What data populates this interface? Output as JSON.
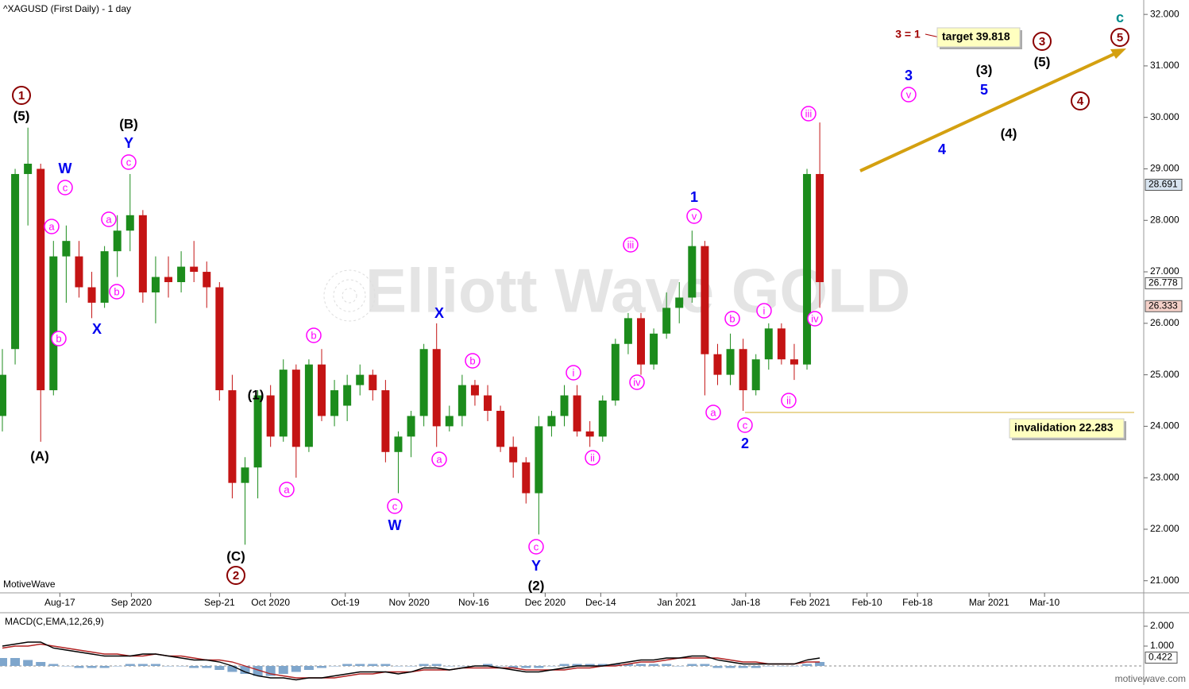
{
  "chart_data": {
    "type": "candlestick",
    "title": "^XAGUSD (First Daily) - 1 day",
    "brand": "MotiveWave",
    "watermark": "Elliott Wave GOLD",
    "footer": "motivewave.com",
    "x": [
      0,
      2,
      4,
      6,
      8,
      10,
      12,
      14,
      16,
      18,
      20,
      22,
      24,
      26,
      28,
      30,
      32,
      34,
      36,
      38,
      40,
      42,
      44,
      46,
      48,
      50,
      52,
      54,
      56,
      58,
      60,
      62,
      64,
      66,
      68,
      70,
      72,
      74,
      76,
      78,
      80,
      82,
      84,
      86,
      88,
      90,
      92,
      94,
      96,
      98,
      100,
      102,
      104,
      106,
      108,
      110,
      112,
      114,
      116,
      118,
      120,
      122,
      124,
      126,
      128
    ],
    "open": [
      24.2,
      25.5,
      28.9,
      29.0,
      24.7,
      27.3,
      27.3,
      26.7,
      26.4,
      27.4,
      27.8,
      28.1,
      26.6,
      26.9,
      26.8,
      27.1,
      27.0,
      26.7,
      24.7,
      22.9,
      23.2,
      24.6,
      23.8,
      25.1,
      23.6,
      25.2,
      24.2,
      24.4,
      24.8,
      25.0,
      24.7,
      23.5,
      23.8,
      24.2,
      25.5,
      24.0,
      24.2,
      24.8,
      24.6,
      24.3,
      23.6,
      23.3,
      22.7,
      24.0,
      24.2,
      24.6,
      23.9,
      23.8,
      24.5,
      25.6,
      26.1,
      25.2,
      25.8,
      26.3,
      26.5,
      27.5,
      25.4,
      25.0,
      25.5,
      24.7,
      25.3,
      25.9,
      25.3,
      25.2,
      28.9
    ],
    "high": [
      25.5,
      29.0,
      29.8,
      29.1,
      27.6,
      27.9,
      27.6,
      27.0,
      27.5,
      28.1,
      28.9,
      28.2,
      27.3,
      27.3,
      27.4,
      27.6,
      27.2,
      26.8,
      25.0,
      23.4,
      24.7,
      24.8,
      25.3,
      25.2,
      25.3,
      25.5,
      24.9,
      25.0,
      25.2,
      25.1,
      24.9,
      23.9,
      24.3,
      25.6,
      26.0,
      24.4,
      25.0,
      24.9,
      24.8,
      24.4,
      23.8,
      23.4,
      24.2,
      24.3,
      24.8,
      24.8,
      24.1,
      24.6,
      25.7,
      26.2,
      26.2,
      25.9,
      26.6,
      26.8,
      27.8,
      27.6,
      25.6,
      25.8,
      25.7,
      25.4,
      26.0,
      26.0,
      25.6,
      29.0,
      29.9
    ],
    "low": [
      23.9,
      25.2,
      27.9,
      23.7,
      24.6,
      26.4,
      26.5,
      26.1,
      26.3,
      26.9,
      27.4,
      26.4,
      26.0,
      26.5,
      26.6,
      26.8,
      26.3,
      24.5,
      22.6,
      21.7,
      22.6,
      23.6,
      23.7,
      23.0,
      23.5,
      24.1,
      24.0,
      24.1,
      24.6,
      24.5,
      23.3,
      22.7,
      23.4,
      24.0,
      23.6,
      23.9,
      24.0,
      24.4,
      24.1,
      23.5,
      23.0,
      22.5,
      21.9,
      23.8,
      24.0,
      23.8,
      23.6,
      23.7,
      24.4,
      25.4,
      25.0,
      25.1,
      25.7,
      26.0,
      26.4,
      24.6,
      24.8,
      24.8,
      24.3,
      24.6,
      25.1,
      25.2,
      24.9,
      25.1,
      26.3
    ],
    "close": [
      25.0,
      28.9,
      29.1,
      24.7,
      27.3,
      27.6,
      26.7,
      26.4,
      27.4,
      27.8,
      28.1,
      26.6,
      26.9,
      26.8,
      27.1,
      27.0,
      26.7,
      24.7,
      22.9,
      23.2,
      24.6,
      23.8,
      25.1,
      23.6,
      25.2,
      24.2,
      24.7,
      24.8,
      25.0,
      24.7,
      23.5,
      23.8,
      24.2,
      25.5,
      24.0,
      24.2,
      24.8,
      24.6,
      24.3,
      23.6,
      23.3,
      22.7,
      24.0,
      24.2,
      24.6,
      23.9,
      23.8,
      24.5,
      25.6,
      26.1,
      25.2,
      25.8,
      26.3,
      26.5,
      27.5,
      25.4,
      25.0,
      25.5,
      24.7,
      25.3,
      25.9,
      25.3,
      25.2,
      28.9,
      26.8
    ],
    "up_color": "#1c8c1c",
    "down_color": "#c41414",
    "xlim": [
      -0.37,
      178.73
    ],
    "xticks": [
      {
        "value": 9,
        "label": "Aug-17"
      },
      {
        "value": 20.2,
        "label": "Sep 2020"
      },
      {
        "value": 34,
        "label": "Sep-21"
      },
      {
        "value": 42,
        "label": "Oct 2020"
      },
      {
        "value": 53.7,
        "label": "Oct-19"
      },
      {
        "value": 63.7,
        "label": "Nov 2020"
      },
      {
        "value": 73.8,
        "label": "Nov-16"
      },
      {
        "value": 85,
        "label": "Dec 2020"
      },
      {
        "value": 93.7,
        "label": "Dec-14"
      },
      {
        "value": 105.6,
        "label": "Jan 2021"
      },
      {
        "value": 116.4,
        "label": "Jan-18"
      },
      {
        "value": 126.5,
        "label": "Feb 2021"
      },
      {
        "value": 135.4,
        "label": "Feb-10"
      },
      {
        "value": 143.3,
        "label": "Feb-18"
      },
      {
        "value": 154.5,
        "label": "Mar 2021"
      },
      {
        "value": 163.2,
        "label": "Mar-10"
      }
    ],
    "ylim": [
      20.78,
      32.28
    ],
    "yticks": [
      {
        "value": 21,
        "label": "21.000"
      },
      {
        "value": 22,
        "label": "22.000"
      },
      {
        "value": 23,
        "label": "23.000"
      },
      {
        "value": 24,
        "label": "24.000"
      },
      {
        "value": 25,
        "label": "25.000"
      },
      {
        "value": 26,
        "label": "26.000"
      },
      {
        "value": 27,
        "label": "27.000"
      },
      {
        "value": 28,
        "label": "28.000"
      },
      {
        "value": 29,
        "label": "29.000"
      },
      {
        "value": 30,
        "label": "30.000"
      },
      {
        "value": 31,
        "label": "31.000"
      },
      {
        "value": 32,
        "label": "32.000"
      }
    ],
    "price_markers": [
      {
        "value": 28.691,
        "color": "#d8e4f0"
      },
      {
        "value": 26.778,
        "color": "#ffffff"
      },
      {
        "value": 26.333,
        "color": "#f4d0c8"
      }
    ],
    "wave_labels": [
      {
        "text": "1",
        "style": "circle-red"
      },
      {
        "text": "(5)",
        "style": "black"
      },
      {
        "text": "(A)",
        "style": "black"
      },
      {
        "text": "W",
        "style": "blue"
      },
      {
        "text": "c",
        "style": "circle-magenta"
      },
      {
        "text": "a",
        "style": "circle-magenta"
      },
      {
        "text": "b",
        "style": "circle-magenta"
      },
      {
        "text": "X",
        "style": "blue"
      },
      {
        "text": "a",
        "style": "circle-magenta"
      },
      {
        "text": "b",
        "style": "circle-magenta"
      },
      {
        "text": "c",
        "style": "circle-magenta"
      },
      {
        "text": "Y",
        "style": "blue"
      },
      {
        "text": "(B)",
        "style": "black"
      },
      {
        "text": "(1)",
        "style": "black"
      },
      {
        "text": "(C)",
        "style": "black"
      },
      {
        "text": "2",
        "style": "circle-red"
      },
      {
        "text": "b",
        "style": "circle-magenta"
      },
      {
        "text": "a",
        "style": "circle-magenta"
      },
      {
        "text": "X",
        "style": "blue"
      },
      {
        "text": "b",
        "style": "circle-magenta"
      },
      {
        "text": "a",
        "style": "circle-magenta"
      },
      {
        "text": "c",
        "style": "circle-magenta"
      },
      {
        "text": "W",
        "style": "blue"
      },
      {
        "text": "c",
        "style": "circle-magenta"
      },
      {
        "text": "Y",
        "style": "blue"
      },
      {
        "text": "(2)",
        "style": "black"
      },
      {
        "text": "i",
        "style": "circle-magenta"
      },
      {
        "text": "ii",
        "style": "circle-magenta"
      },
      {
        "text": "iii",
        "style": "circle-magenta"
      },
      {
        "text": "iv",
        "style": "circle-magenta"
      },
      {
        "text": "1",
        "style": "blue"
      },
      {
        "text": "v",
        "style": "circle-magenta"
      },
      {
        "text": "b",
        "style": "circle-magenta"
      },
      {
        "text": "a",
        "style": "circle-magenta"
      },
      {
        "text": "i",
        "style": "circle-magenta"
      },
      {
        "text": "c",
        "style": "circle-magenta"
      },
      {
        "text": "2",
        "style": "blue"
      },
      {
        "text": "ii",
        "style": "circle-magenta"
      },
      {
        "text": "iii",
        "style": "circle-magenta"
      },
      {
        "text": "iv",
        "style": "circle-magenta"
      },
      {
        "text": "3",
        "style": "blue"
      },
      {
        "text": "v",
        "style": "circle-magenta"
      },
      {
        "text": "4",
        "style": "blue"
      },
      {
        "text": "(3)",
        "style": "black"
      },
      {
        "text": "5",
        "style": "blue"
      },
      {
        "text": "(4)",
        "style": "black"
      },
      {
        "text": "(5)",
        "style": "black"
      },
      {
        "text": "3",
        "style": "circle-red"
      },
      {
        "text": "4",
        "style": "circle-red"
      },
      {
        "text": "5",
        "style": "circle-red"
      },
      {
        "text": "c",
        "style": "teal"
      },
      {
        "text": "3 = 1",
        "style": "darkred"
      }
    ],
    "callouts": [
      "target 39.818",
      "invalidation 22.283"
    ],
    "macd": {
      "title": "MACD(C,EMA,12,26,9)",
      "macd": [
        1.0,
        1.1,
        1.2,
        1.2,
        0.9,
        0.8,
        0.7,
        0.6,
        0.5,
        0.5,
        0.5,
        0.6,
        0.6,
        0.5,
        0.4,
        0.3,
        0.3,
        0.2,
        0.0,
        -0.3,
        -0.5,
        -0.6,
        -0.6,
        -0.7,
        -0.6,
        -0.6,
        -0.5,
        -0.4,
        -0.3,
        -0.3,
        -0.3,
        -0.4,
        -0.3,
        -0.1,
        -0.1,
        -0.2,
        -0.1,
        0.0,
        0.0,
        -0.1,
        -0.2,
        -0.3,
        -0.3,
        -0.2,
        -0.1,
        0.0,
        0.0,
        0.0,
        0.1,
        0.2,
        0.3,
        0.3,
        0.4,
        0.4,
        0.5,
        0.5,
        0.3,
        0.2,
        0.1,
        0.1,
        0.1,
        0.1,
        0.1,
        0.3,
        0.4
      ],
      "signal": [
        0.9,
        1.0,
        1.0,
        1.1,
        1.0,
        0.9,
        0.8,
        0.7,
        0.6,
        0.6,
        0.5,
        0.5,
        0.6,
        0.5,
        0.5,
        0.4,
        0.3,
        0.3,
        0.2,
        0.0,
        -0.2,
        -0.4,
        -0.5,
        -0.6,
        -0.6,
        -0.6,
        -0.6,
        -0.5,
        -0.4,
        -0.4,
        -0.3,
        -0.3,
        -0.3,
        -0.2,
        -0.2,
        -0.2,
        -0.1,
        -0.1,
        -0.1,
        -0.1,
        -0.1,
        -0.2,
        -0.2,
        -0.2,
        -0.2,
        -0.1,
        -0.1,
        0.0,
        0.0,
        0.1,
        0.2,
        0.2,
        0.3,
        0.4,
        0.4,
        0.4,
        0.4,
        0.3,
        0.2,
        0.2,
        0.1,
        0.1,
        0.1,
        0.2,
        0.2
      ],
      "histogram": [
        0.4,
        0.4,
        0.3,
        0.2,
        0.1,
        0.0,
        -0.1,
        -0.1,
        -0.1,
        0.0,
        0.1,
        0.1,
        0.1,
        0.0,
        0.0,
        -0.1,
        -0.1,
        -0.2,
        -0.3,
        -0.4,
        -0.5,
        -0.5,
        -0.4,
        -0.3,
        -0.2,
        -0.1,
        0.0,
        0.1,
        0.1,
        0.1,
        0.1,
        0.0,
        0.0,
        0.1,
        0.1,
        0.0,
        0.0,
        0.0,
        0.1,
        0.0,
        -0.1,
        -0.1,
        -0.1,
        0.0,
        0.1,
        0.1,
        0.1,
        0.1,
        0.1,
        0.1,
        0.1,
        0.1,
        0.1,
        0.0,
        0.1,
        0.1,
        -0.1,
        -0.1,
        -0.1,
        -0.1,
        0.0,
        0.0,
        0.0,
        0.1,
        0.2
      ],
      "ylim": [
        -0.68,
        2.52
      ],
      "yticks": [
        {
          "value": 1,
          "label": "1.000"
        },
        {
          "value": 2,
          "label": "2.000"
        }
      ],
      "marker": 0.422
    }
  }
}
